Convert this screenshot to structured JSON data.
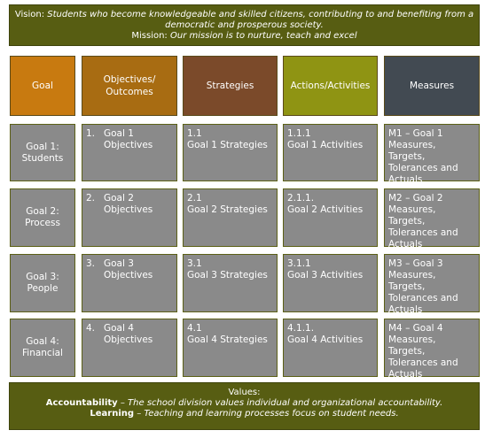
{
  "vision": {
    "label": "Vision:",
    "text": "Students who become knowledgeable and skilled citizens, contributing to and benefiting from a democratic and prosperous society."
  },
  "mission": {
    "label": "Mission:",
    "text": "Our mission is to nurture, teach and excel"
  },
  "headers": [
    {
      "label": "Goal",
      "color": "#c87a10"
    },
    {
      "label": "Objectives/ Outcomes",
      "color": "#a86c12"
    },
    {
      "label": "Strategies",
      "color": "#7b4a2a"
    },
    {
      "label": "Actions/Activities",
      "color": "#8f9413"
    },
    {
      "label": "Measures",
      "color": "#424a52"
    }
  ],
  "rows": [
    {
      "goal": "Goal 1: Students",
      "objective_num": "1.",
      "objective": "Goal 1 Objectives",
      "strategy_num": "1.1",
      "strategy": "Goal 1 Strategies",
      "action_num": "1.1.1",
      "action": "Goal 1 Activities",
      "measure": "M1 – Goal 1 Measures, Targets, Tolerances and Actuals"
    },
    {
      "goal": "Goal 2: Process",
      "objective_num": "2.",
      "objective": "Goal 2 Objectives",
      "strategy_num": "2.1",
      "strategy": "Goal 2 Strategies",
      "action_num": "2.1.1.",
      "action": "Goal 2 Activities",
      "measure": "M2 – Goal 2 Measures, Targets, Tolerances and Actuals"
    },
    {
      "goal": "Goal 3: People",
      "objective_num": "3.",
      "objective": "Goal 3 Objectives",
      "strategy_num": "3.1",
      "strategy": "Goal 3 Strategies",
      "action_num": "3.1.1",
      "action": "Goal 3 Activities",
      "measure": "M3 – Goal 3 Measures, Targets, Tolerances and Actuals"
    },
    {
      "goal": "Goal 4: Financial",
      "objective_num": "4.",
      "objective": "Goal 4 Objectives",
      "strategy_num": "4.1",
      "strategy": "Goal 4 Strategies",
      "action_num": "4.1.1.",
      "action": "Goal 4 Activities",
      "measure": "M4 – Goal 4 Measures, Targets, Tolerances and Actuals"
    }
  ],
  "values": {
    "heading": "Values:",
    "items": [
      {
        "term": "Accountability",
        "text": " – The school division values individual and organizational accountability."
      },
      {
        "term": "Learning",
        "text": " – Teaching and learning processes focus on student needs."
      }
    ]
  },
  "colors": {
    "banner": "#575d12",
    "cell": "#8a8a8a"
  }
}
